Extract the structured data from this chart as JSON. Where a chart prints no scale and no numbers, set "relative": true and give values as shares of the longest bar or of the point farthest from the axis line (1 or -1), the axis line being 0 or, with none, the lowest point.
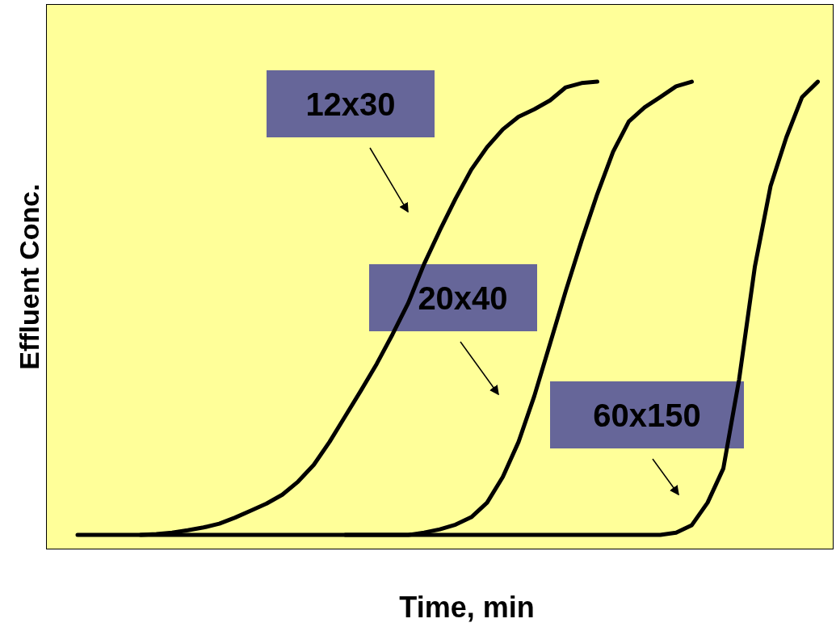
{
  "chart_data": {
    "type": "line",
    "relative": true,
    "xlabel": "Time, min",
    "ylabel": "Effluent Conc.",
    "categories": [
      null,
      null,
      null,
      null,
      null,
      null,
      null,
      null,
      null,
      null,
      null,
      null,
      null,
      null,
      null,
      null,
      null,
      null,
      null,
      null,
      null,
      null,
      null,
      null,
      null,
      null,
      null,
      null,
      null,
      null,
      null,
      null,
      null,
      null,
      null,
      null,
      null,
      null,
      null,
      null,
      null,
      null,
      null,
      null,
      null,
      null,
      null,
      null,
      null
    ],
    "series": [
      {
        "color": "#000000",
        "values": [
          null,
          0.031,
          0.031,
          0.031,
          0.031,
          0.031,
          0.033,
          0.036,
          0.041,
          0.047,
          0.055,
          0.068,
          0.083,
          0.098,
          0.117,
          0.145,
          0.181,
          0.23,
          0.285,
          0.34,
          0.397,
          0.46,
          0.527,
          0.61,
          0.682,
          0.75,
          0.812,
          0.86,
          0.898,
          0.925,
          0.941,
          0.96,
          0.988,
          0.997,
          1.0,
          null,
          null,
          null,
          null,
          null,
          null,
          null,
          null,
          null,
          null,
          null,
          null,
          null,
          null
        ]
      },
      {
        "color": "#000000",
        "values": [
          null,
          null,
          null,
          null,
          null,
          0.031,
          0.031,
          0.031,
          0.031,
          0.031,
          0.031,
          0.031,
          0.031,
          0.031,
          0.031,
          0.031,
          0.031,
          0.031,
          0.031,
          0.031,
          0.031,
          0.031,
          0.031,
          0.036,
          0.043,
          0.053,
          0.069,
          0.1,
          0.155,
          0.23,
          0.328,
          0.44,
          0.553,
          0.66,
          0.76,
          0.85,
          0.915,
          0.945,
          0.967,
          0.99,
          1.0,
          null,
          null,
          null,
          null,
          null,
          null,
          null,
          null
        ]
      },
      {
        "color": "#000000",
        "values": [
          null,
          null,
          null,
          null,
          null,
          null,
          null,
          null,
          null,
          null,
          null,
          null,
          null,
          null,
          null,
          null,
          null,
          null,
          0.031,
          0.031,
          0.031,
          0.031,
          0.031,
          0.031,
          0.031,
          0.031,
          0.031,
          0.031,
          0.031,
          0.031,
          0.031,
          0.031,
          0.031,
          0.031,
          0.031,
          0.031,
          0.031,
          0.031,
          0.031,
          0.036,
          0.052,
          0.1,
          0.173,
          0.363,
          0.604,
          0.777,
          0.881,
          0.967,
          1.0
        ]
      }
    ],
    "annotations": [
      "12x30",
      "20x40",
      "60x150"
    ]
  }
}
